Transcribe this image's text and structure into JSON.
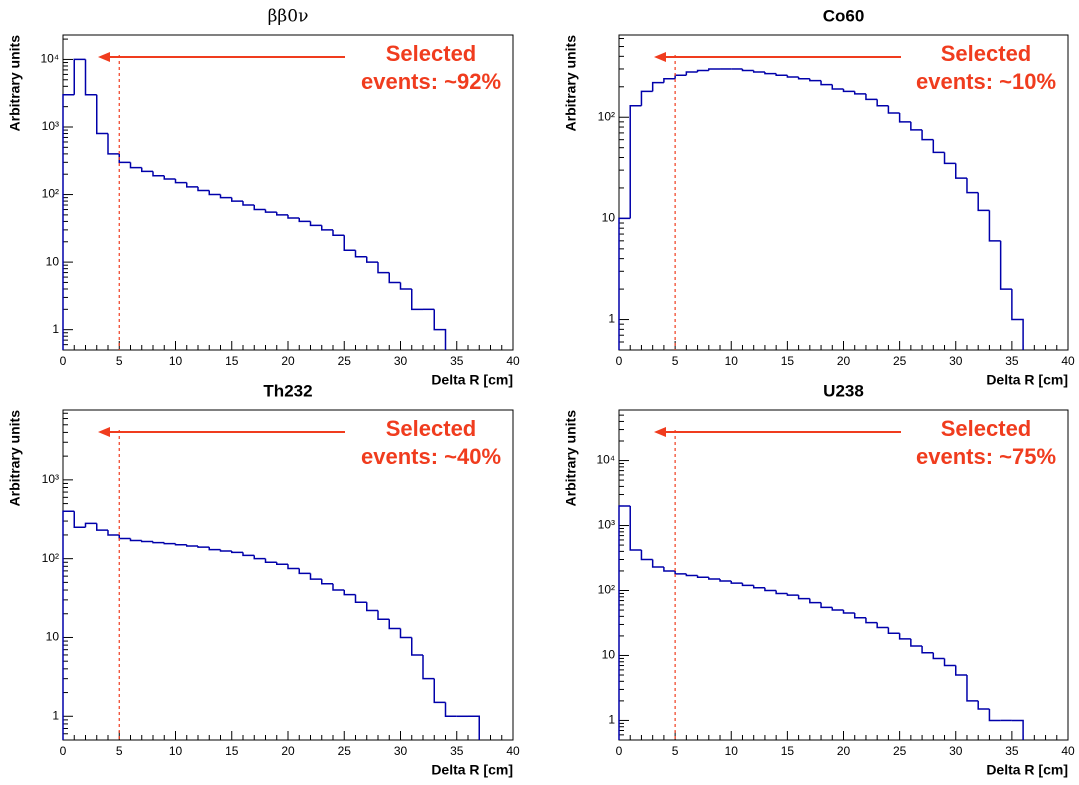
{
  "chart_data": [
    {
      "type": "histogram",
      "title": "ββ0ν",
      "x_label": "Delta R [cm]",
      "y_label": "Arbitrary units",
      "annotation": [
        "Selected",
        "events: ~92%"
      ],
      "cut": 5,
      "log_y": true,
      "color": "#0000aa",
      "cut_color": "#f03c1e",
      "xlim": [
        0,
        40
      ],
      "xticks": [
        0,
        5,
        10,
        15,
        20,
        25,
        30,
        35,
        40
      ],
      "ylim": [
        0.5,
        23000
      ],
      "yticks": [
        1,
        10,
        {
          "value": 100,
          "label": "10²"
        },
        {
          "value": 1000,
          "label": "10³"
        },
        {
          "value": 10000,
          "label": "10⁴"
        }
      ],
      "bins": [
        0,
        1,
        2,
        3,
        4,
        5,
        6,
        7,
        8,
        9,
        10,
        11,
        12,
        13,
        14,
        15,
        16,
        17,
        18,
        19,
        20,
        21,
        22,
        23,
        24,
        25,
        26,
        27,
        28,
        29,
        30,
        31,
        32,
        33,
        34
      ],
      "values": [
        3000,
        10000,
        3000,
        800,
        400,
        300,
        250,
        220,
        190,
        170,
        150,
        130,
        115,
        100,
        90,
        80,
        70,
        60,
        55,
        50,
        45,
        40,
        35,
        30,
        25,
        15,
        12,
        10,
        7,
        5,
        4,
        2,
        2,
        1
      ]
    },
    {
      "type": "histogram",
      "title": "Co60",
      "x_label": "Delta R [cm]",
      "y_label": "Arbitrary units",
      "annotation": [
        "Selected",
        "events: ~10%"
      ],
      "cut": 5,
      "log_y": true,
      "color": "#0000aa",
      "cut_color": "#f03c1e",
      "xlim": [
        0,
        40
      ],
      "xticks": [
        0,
        5,
        10,
        15,
        20,
        25,
        30,
        35,
        40
      ],
      "ylim": [
        0.5,
        650
      ],
      "yticks": [
        1,
        10,
        {
          "value": 100,
          "label": "10²"
        }
      ],
      "bins": [
        0,
        1,
        2,
        3,
        4,
        5,
        6,
        7,
        8,
        9,
        10,
        11,
        12,
        13,
        14,
        15,
        16,
        17,
        18,
        19,
        20,
        21,
        22,
        23,
        24,
        25,
        26,
        27,
        28,
        29,
        30,
        31,
        32,
        33,
        34,
        35,
        36
      ],
      "values": [
        10,
        130,
        180,
        220,
        240,
        260,
        280,
        290,
        300,
        300,
        300,
        290,
        280,
        270,
        260,
        250,
        240,
        230,
        210,
        190,
        180,
        170,
        150,
        130,
        110,
        90,
        75,
        60,
        45,
        35,
        25,
        18,
        12,
        6,
        2,
        1
      ]
    },
    {
      "type": "histogram",
      "title": "Th232",
      "x_label": "Delta R [cm]",
      "y_label": "Arbitrary units",
      "annotation": [
        "Selected",
        "events: ~40%"
      ],
      "cut": 5,
      "log_y": true,
      "color": "#0000aa",
      "cut_color": "#f03c1e",
      "xlim": [
        0,
        40
      ],
      "xticks": [
        0,
        5,
        10,
        15,
        20,
        25,
        30,
        35,
        40
      ],
      "ylim": [
        0.5,
        7700
      ],
      "yticks": [
        1,
        10,
        {
          "value": 100,
          "label": "10²"
        },
        {
          "value": 1000,
          "label": "10³"
        }
      ],
      "bins": [
        0,
        1,
        2,
        3,
        4,
        5,
        6,
        7,
        8,
        9,
        10,
        11,
        12,
        13,
        14,
        15,
        16,
        17,
        18,
        19,
        20,
        21,
        22,
        23,
        24,
        25,
        26,
        27,
        28,
        29,
        30,
        31,
        32,
        33,
        34,
        35,
        36,
        37
      ],
      "values": [
        400,
        250,
        280,
        230,
        200,
        180,
        170,
        165,
        160,
        155,
        150,
        145,
        140,
        130,
        125,
        120,
        110,
        100,
        90,
        85,
        75,
        65,
        55,
        48,
        40,
        35,
        28,
        22,
        17,
        13,
        10,
        6,
        3,
        1.5,
        1,
        1,
        1
      ]
    },
    {
      "type": "histogram",
      "title": "U238",
      "x_label": "Delta R [cm]",
      "y_label": "Arbitrary units",
      "annotation": [
        "Selected",
        "events: ~75%"
      ],
      "cut": 5,
      "log_y": true,
      "color": "#0000aa",
      "cut_color": "#f03c1e",
      "xlim": [
        0,
        40
      ],
      "xticks": [
        0,
        5,
        10,
        15,
        20,
        25,
        30,
        35,
        40
      ],
      "ylim": [
        0.5,
        60000
      ],
      "yticks": [
        1,
        10,
        {
          "value": 100,
          "label": "10²"
        },
        {
          "value": 1000,
          "label": "10³"
        },
        {
          "value": 10000,
          "label": "10⁴"
        }
      ],
      "bins": [
        0,
        1,
        2,
        3,
        4,
        5,
        6,
        7,
        8,
        9,
        10,
        11,
        12,
        13,
        14,
        15,
        16,
        17,
        18,
        19,
        20,
        21,
        22,
        23,
        24,
        25,
        26,
        27,
        28,
        29,
        30,
        31,
        32,
        33,
        34,
        35,
        36
      ],
      "values": [
        2000,
        420,
        300,
        230,
        200,
        180,
        170,
        160,
        150,
        140,
        130,
        120,
        110,
        100,
        90,
        85,
        75,
        65,
        55,
        50,
        45,
        38,
        32,
        27,
        22,
        18,
        14,
        11,
        9,
        7,
        5,
        2,
        1.5,
        1,
        1,
        1
      ]
    }
  ]
}
